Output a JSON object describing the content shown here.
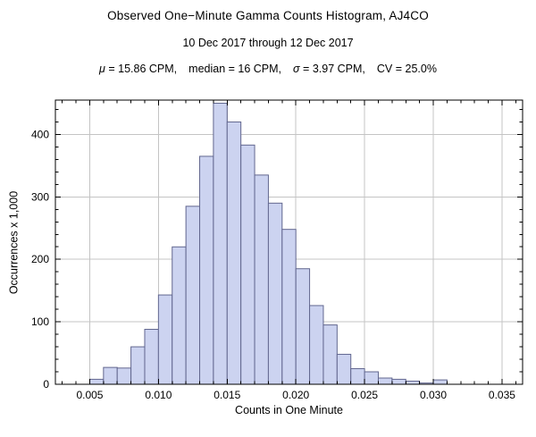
{
  "chart_data": {
    "type": "histogram",
    "title": "Observed One−Minute Gamma Counts Histogram, AJ4CO",
    "subtitle": "10 Dec 2017 through 12 Dec 2017",
    "stats": {
      "mu_symbol": "μ",
      "mu_rest": " = 15.86 CPM,",
      "median": "median = 16 CPM,",
      "sigma_symbol": "σ",
      "sigma_rest": " = 3.97 CPM,",
      "cv": "CV = 25.0%"
    },
    "xlabel": "Counts in One Minute",
    "ylabel": "Occurrences x 1,000",
    "xlim": [
      0.0025,
      0.0365
    ],
    "ylim": [
      0,
      455
    ],
    "xticks": {
      "values": [
        0.005,
        0.01,
        0.015,
        0.02,
        0.025,
        0.03,
        0.035
      ],
      "labels": [
        "0.005",
        "0.010",
        "0.015",
        "0.020",
        "0.025",
        "0.030",
        "0.035"
      ]
    },
    "yticks": {
      "values": [
        0,
        100,
        200,
        300,
        400
      ],
      "labels": [
        "0",
        "100",
        "200",
        "300",
        "400"
      ]
    },
    "x_minor": {
      "start": 0.003,
      "end": 0.036,
      "step": 0.001
    },
    "y_minor": {
      "start": 0,
      "end": 440,
      "step": 20
    },
    "bin_width": 0.001,
    "bin_starts": [
      0.005,
      0.006,
      0.007,
      0.008,
      0.009,
      0.01,
      0.011,
      0.012,
      0.013,
      0.014,
      0.015,
      0.016,
      0.017,
      0.018,
      0.019,
      0.02,
      0.021,
      0.022,
      0.023,
      0.024,
      0.025,
      0.026,
      0.027,
      0.028,
      0.029,
      0.03
    ],
    "counts": [
      8,
      27,
      26,
      60,
      88,
      143,
      220,
      285,
      365,
      450,
      420,
      383,
      335,
      290,
      248,
      185,
      126,
      95,
      48,
      25,
      20,
      10,
      8,
      5,
      2,
      7
    ],
    "grid": true,
    "legend": "none",
    "colors": {
      "bar_fill": "#ccd3f0",
      "bar_edge": "#62678f",
      "grid": "#c4c4c4",
      "frame": "#000000",
      "text": "#000000",
      "background": "#ffffff"
    }
  }
}
